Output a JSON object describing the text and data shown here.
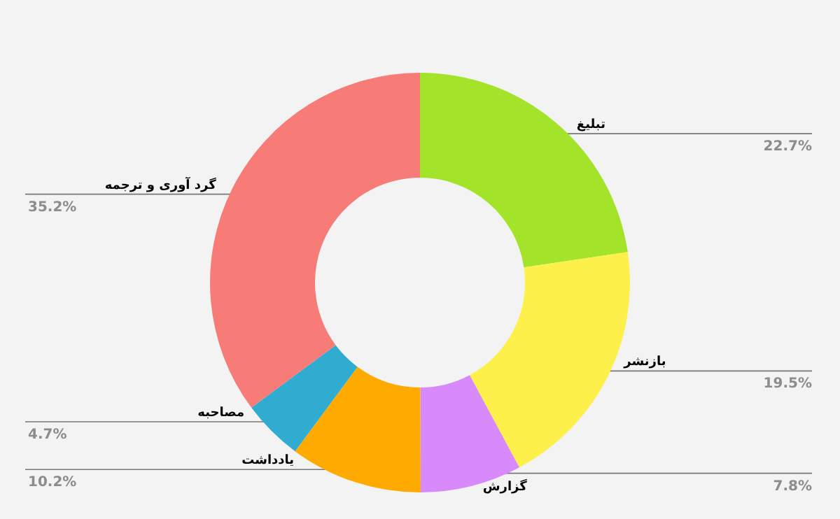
{
  "chart_data": {
    "type": "donut",
    "categories": [
      "تبلیغ",
      "بازنشر",
      "گزارش",
      "یادداشت",
      "مصاحبه",
      "گرد آوری و ترجمه"
    ],
    "values": [
      22.7,
      19.5,
      7.8,
      10.2,
      4.7,
      35.2
    ],
    "value_labels": [
      "22.7%",
      "19.5%",
      "7.8%",
      "10.2%",
      "4.7%",
      "35.2%"
    ],
    "colors": [
      "#a3e42a",
      "#fdf04a",
      "#d88afb",
      "#ffaa00",
      "#30acd0",
      "#f77b76"
    ]
  }
}
